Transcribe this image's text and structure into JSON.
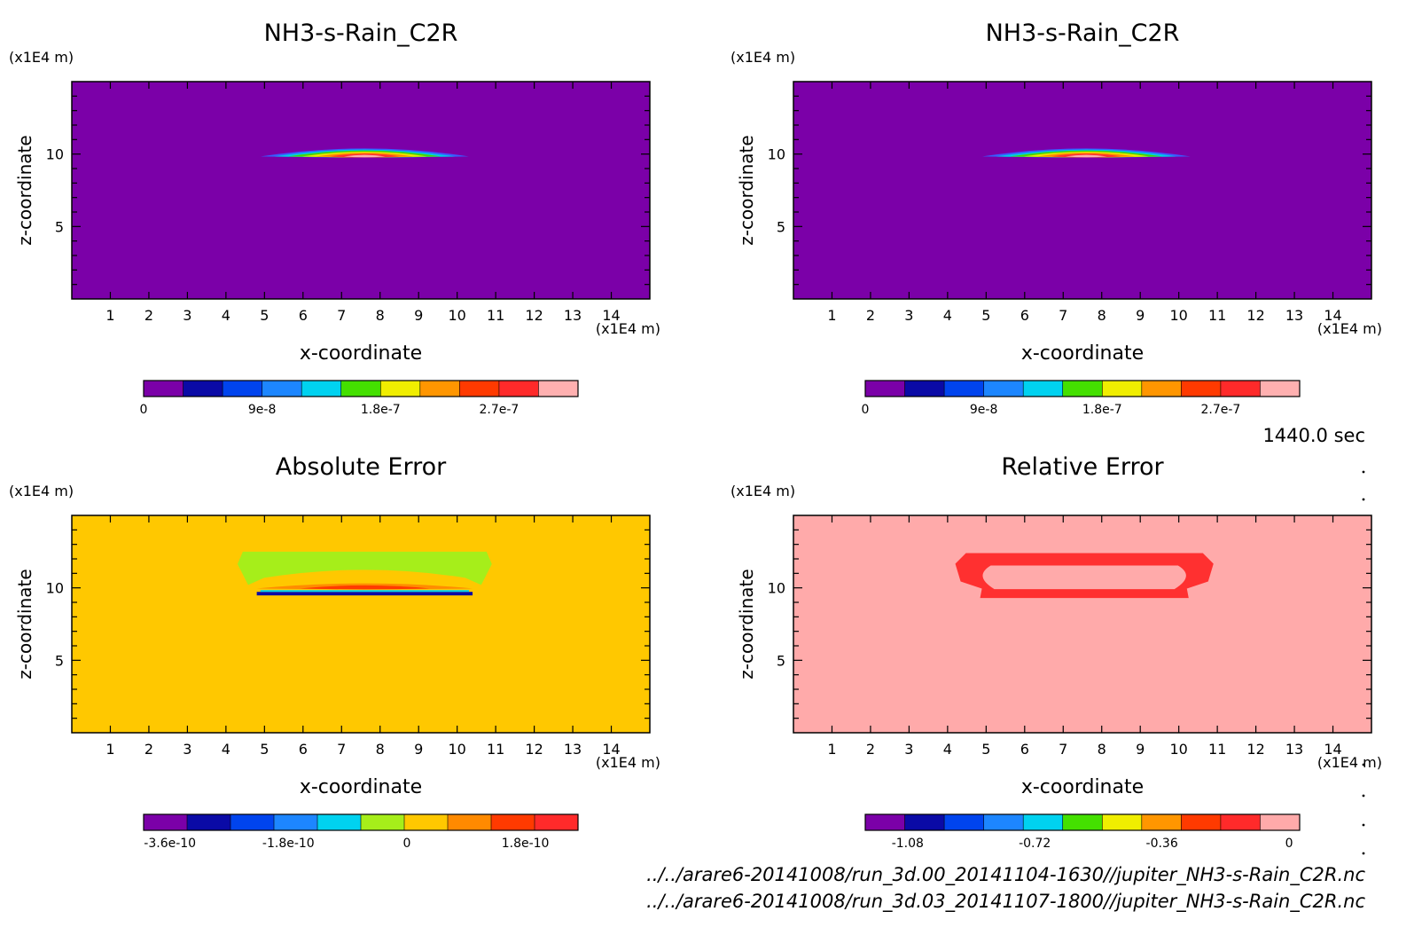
{
  "time_label": "1440.0 sec",
  "source_files": [
    "../../arare6-20141008/run_3d.00_20141104-1630//jupiter_NH3-s-Rain_C2R.nc",
    "../../arare6-20141008/run_3d.03_20141107-1800//jupiter_NH3-s-Rain_C2R.nc"
  ],
  "chart_data": [
    {
      "type": "heatmap",
      "title": "NH3-s-Rain_C2R",
      "xlabel": "x-coordinate",
      "ylabel": "z-coordinate",
      "x_unit": "(x1E4 m)",
      "y_unit": "(x1E4 m)",
      "xlim": [
        0,
        15
      ],
      "ylim": [
        0,
        15
      ],
      "xticks": [
        "1",
        "2",
        "3",
        "4",
        "5",
        "6",
        "7",
        "8",
        "9",
        "10",
        "11",
        "12",
        "13",
        "14"
      ],
      "yticks": [
        "5",
        "10"
      ],
      "background": "#7b00a8",
      "features": [
        {
          "shape": "lens",
          "cx": 7.6,
          "cz": 9.9,
          "half_width": 2.7,
          "height": 0.55,
          "layers": [
            "#3a5bff",
            "#00c8e6",
            "#49d400",
            "#f0e600",
            "#ff8a00",
            "#ff3030",
            "#ffb0b0"
          ]
        }
      ],
      "colorbar": {
        "colors": [
          "#7b00a8",
          "#0a0aa6",
          "#0044ee",
          "#1d86ff",
          "#00d2f0",
          "#44e000",
          "#f0ee00",
          "#ff9600",
          "#ff3a00",
          "#ff2a2a",
          "#ffb0b0"
        ],
        "tick_labels": [
          "0",
          "9e-8",
          "1.8e-7",
          "2.7e-7"
        ],
        "tick_values": [
          0,
          9e-08,
          1.8e-07,
          2.7e-07
        ],
        "range": [
          0,
          3.3e-07
        ]
      }
    },
    {
      "type": "heatmap",
      "title": "NH3-s-Rain_C2R",
      "xlabel": "x-coordinate",
      "ylabel": "z-coordinate",
      "x_unit": "(x1E4 m)",
      "y_unit": "(x1E4 m)",
      "xlim": [
        0,
        15
      ],
      "ylim": [
        0,
        15
      ],
      "xticks": [
        "1",
        "2",
        "3",
        "4",
        "5",
        "6",
        "7",
        "8",
        "9",
        "10",
        "11",
        "12",
        "13",
        "14"
      ],
      "yticks": [
        "5",
        "10"
      ],
      "background": "#7b00a8",
      "features": [
        {
          "shape": "lens",
          "cx": 7.6,
          "cz": 9.9,
          "half_width": 2.7,
          "height": 0.55,
          "layers": [
            "#3a5bff",
            "#00c8e6",
            "#49d400",
            "#f0e600",
            "#ff8a00",
            "#ff3030",
            "#ffb0b0"
          ]
        }
      ],
      "colorbar": {
        "colors": [
          "#7b00a8",
          "#0a0aa6",
          "#0044ee",
          "#1d86ff",
          "#00d2f0",
          "#44e000",
          "#f0ee00",
          "#ff9600",
          "#ff3a00",
          "#ff2a2a",
          "#ffb0b0"
        ],
        "tick_labels": [
          "0",
          "9e-8",
          "1.8e-7",
          "2.7e-7"
        ],
        "tick_values": [
          0,
          9e-08,
          1.8e-07,
          2.7e-07
        ],
        "range": [
          0,
          3.3e-07
        ]
      }
    },
    {
      "type": "heatmap",
      "title": "Absolute Error",
      "xlabel": "x-coordinate",
      "ylabel": "z-coordinate",
      "x_unit": "(x1E4 m)",
      "y_unit": "(x1E4 m)",
      "xlim": [
        0,
        15
      ],
      "ylim": [
        0,
        15
      ],
      "xticks": [
        "1",
        "2",
        "3",
        "4",
        "5",
        "6",
        "7",
        "8",
        "9",
        "10",
        "11",
        "12",
        "13",
        "14"
      ],
      "yticks": [
        "5",
        "10"
      ],
      "background": "#ffc800",
      "features": [
        {
          "shape": "band",
          "x0": 4.3,
          "x1": 10.9,
          "z0": 10.2,
          "z1": 12.5,
          "color": "#a6ee1a"
        },
        {
          "shape": "lens",
          "cx": 7.6,
          "cz": 10.0,
          "half_width": 2.8,
          "height": 0.35,
          "layers": [
            "#ff8c00",
            "#ff3a00"
          ]
        },
        {
          "shape": "line",
          "x0": 4.8,
          "x1": 10.4,
          "z": 9.6,
          "colors": [
            "#0a0aa6",
            "#00d2f0"
          ]
        }
      ],
      "colorbar": {
        "colors": [
          "#7b00a8",
          "#0a0aa6",
          "#0044ee",
          "#1d86ff",
          "#00d2f0",
          "#a6ee1a",
          "#ffc800",
          "#ff8a00",
          "#ff3a00",
          "#ff2a2a"
        ],
        "tick_labels": [
          "-3.6e-10",
          "-1.8e-10",
          "0",
          "1.8e-10"
        ],
        "tick_values": [
          -3.6e-10,
          -1.8e-10,
          0,
          1.8e-10
        ],
        "range": [
          -4e-10,
          2.6e-10
        ]
      }
    },
    {
      "type": "heatmap",
      "title": "Relative Error",
      "xlabel": "x-coordinate",
      "ylabel": "z-coordinate",
      "x_unit": "(x1E4 m)",
      "y_unit": "(x1E4 m)",
      "xlim": [
        0,
        15
      ],
      "ylim": [
        0,
        15
      ],
      "xticks": [
        "1",
        "2",
        "3",
        "4",
        "5",
        "6",
        "7",
        "8",
        "9",
        "10",
        "11",
        "12",
        "13",
        "14"
      ],
      "yticks": [
        "5",
        "10"
      ],
      "background": "#ffaaaa",
      "features": [
        {
          "shape": "ring",
          "x0": 4.2,
          "x1": 10.9,
          "z0": 9.3,
          "z1": 12.4,
          "color": "#ff3030"
        }
      ],
      "colorbar": {
        "colors": [
          "#7b00a8",
          "#0a0aa6",
          "#0044ee",
          "#1d86ff",
          "#00d2f0",
          "#44e000",
          "#f0ee00",
          "#ff9600",
          "#ff3a00",
          "#ff2a2a",
          "#ffaaaa"
        ],
        "tick_labels": [
          "-1.08",
          "-0.72",
          "-0.36",
          "0"
        ],
        "tick_values": [
          -1.08,
          -0.72,
          -0.36,
          0
        ],
        "range": [
          -1.2,
          0.03
        ]
      }
    }
  ]
}
